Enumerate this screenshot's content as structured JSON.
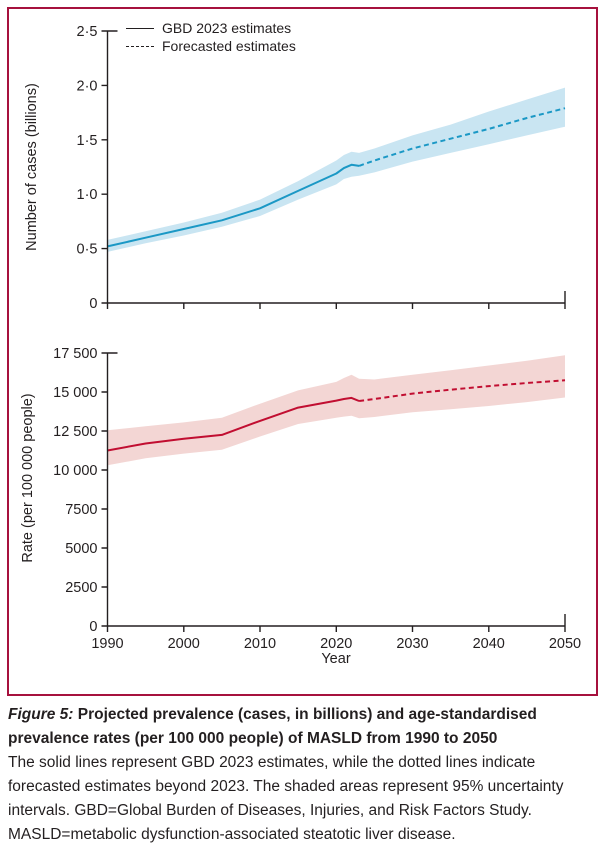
{
  "legend": [
    {
      "label": "GBD 2023 estimates",
      "style": "solid"
    },
    {
      "label": "Forecasted estimates",
      "style": "dashed"
    }
  ],
  "xlabel": "Year",
  "caption": {
    "figure_label": "Figure 5:",
    "title": " Projected prevalence (cases, in billions) and age-standardised prevalence rates (per 100 000 people) of MASLD from 1990 to 2050",
    "body": "The solid lines represent GBD 2023 estimates, while the dotted lines indicate forecasted estimates beyond 2023. The shaded areas represent 95% uncertainty intervals. GBD=Global Burden of Diseases, Injuries, and Risk Factors Study. MASLD=metabolic dysfunction-associated steatotic liver disease."
  },
  "colors": {
    "border": "#A6113D",
    "cases_line": "#1B98C5",
    "cases_band": "#C9E5F2",
    "rate_line": "#C10E31",
    "rate_band": "#F3D6D4",
    "axis": "#231f20"
  },
  "chart_data": [
    {
      "id": "top",
      "type": "line",
      "title": "",
      "ylabel": "Number of cases (billions)",
      "xlabel": "",
      "xlim": [
        1990,
        2050
      ],
      "ylim": [
        0,
        2.5
      ],
      "grid": false,
      "legend_position": "top-left",
      "forecast_from": 2023,
      "line_color": "#1B98C5",
      "band_color": "#C9E5F2",
      "x": [
        1990,
        1995,
        2000,
        2005,
        2010,
        2015,
        2020,
        2021,
        2022,
        2023,
        2025,
        2030,
        2035,
        2040,
        2045,
        2050
      ],
      "series": [
        {
          "name": "MASLD cases (billions)",
          "values": [
            0.52,
            0.6,
            0.68,
            0.76,
            0.87,
            1.03,
            1.19,
            1.24,
            1.27,
            1.26,
            1.31,
            1.42,
            1.51,
            1.6,
            1.7,
            1.79
          ]
        }
      ],
      "band": {
        "name": "95% uncertainty interval",
        "lower": [
          0.47,
          0.55,
          0.62,
          0.7,
          0.8,
          0.95,
          1.09,
          1.14,
          1.16,
          1.17,
          1.2,
          1.3,
          1.38,
          1.46,
          1.54,
          1.62
        ],
        "upper": [
          0.58,
          0.66,
          0.74,
          0.83,
          0.95,
          1.12,
          1.31,
          1.36,
          1.39,
          1.38,
          1.42,
          1.54,
          1.64,
          1.76,
          1.87,
          1.98
        ]
      },
      "yticks": [
        0,
        0.5,
        1.0,
        1.5,
        2.0,
        2.5
      ],
      "ytick_labels": [
        "0",
        "0·5",
        "1·0",
        "1·5",
        "2·0",
        "2·5"
      ],
      "xticks": [
        1990,
        2000,
        2010,
        2020,
        2030,
        2040,
        2050
      ],
      "xtick_labels": [
        "1990",
        "2000",
        "2010",
        "2020",
        "2030",
        "2040",
        "2050"
      ],
      "show_xtick_labels": false
    },
    {
      "id": "bottom",
      "type": "line",
      "title": "",
      "ylabel": "Rate (per 100 000 people)",
      "xlabel": "Year",
      "xlim": [
        1990,
        2050
      ],
      "ylim": [
        0,
        17500
      ],
      "grid": false,
      "forecast_from": 2023,
      "line_color": "#C10E31",
      "band_color": "#F3D6D4",
      "x": [
        1990,
        1995,
        2000,
        2005,
        2010,
        2015,
        2020,
        2021,
        2022,
        2023,
        2025,
        2030,
        2035,
        2040,
        2045,
        2050
      ],
      "series": [
        {
          "name": "MASLD rate (per 100 000 people)",
          "values": [
            11250,
            11700,
            12000,
            12250,
            13150,
            14000,
            14450,
            14550,
            14620,
            14420,
            14550,
            14900,
            15150,
            15380,
            15580,
            15750
          ]
        }
      ],
      "band": {
        "name": "95% uncertainty interval",
        "lower": [
          10300,
          10750,
          11050,
          11300,
          12150,
          12950,
          13350,
          13420,
          13480,
          13320,
          13400,
          13700,
          13900,
          14100,
          14350,
          14650
        ],
        "upper": [
          12550,
          12800,
          13050,
          13350,
          14250,
          15100,
          15650,
          15900,
          16100,
          15850,
          15800,
          16100,
          16400,
          16700,
          17000,
          17350
        ]
      },
      "yticks": [
        0,
        2500,
        5000,
        7500,
        10000,
        12500,
        15000,
        17500
      ],
      "ytick_labels": [
        "0",
        "2500",
        "5000",
        "7500",
        "10 000",
        "12 500",
        "15 000",
        "17 500"
      ],
      "xticks": [
        1990,
        2000,
        2010,
        2020,
        2030,
        2040,
        2050
      ],
      "xtick_labels": [
        "1990",
        "2000",
        "2010",
        "2020",
        "2030",
        "2040",
        "2050"
      ],
      "show_xtick_labels": true
    }
  ]
}
